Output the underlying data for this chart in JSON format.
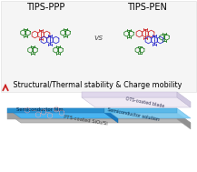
{
  "title_left": "TIPS-PPP",
  "title_right": "TIPS-PEN",
  "vs_text": "vs",
  "arrow_text": " Structural/Thermal stability & Charge mobility",
  "label_semiconductor_film": "Semiconductor film",
  "label_pts_coated": "PTS-coated SiO₂/Si",
  "label_ots_coated": "OTS-coated blade",
  "label_semiconductor_solution": "Semiconductor solution",
  "bg_color": "#ffffff",
  "title_fontsize": 7.0,
  "arrow_fontsize": 5.8,
  "mol_green": "#1a7a1a",
  "mol_red": "#cc2222",
  "mol_blue": "#2222cc"
}
